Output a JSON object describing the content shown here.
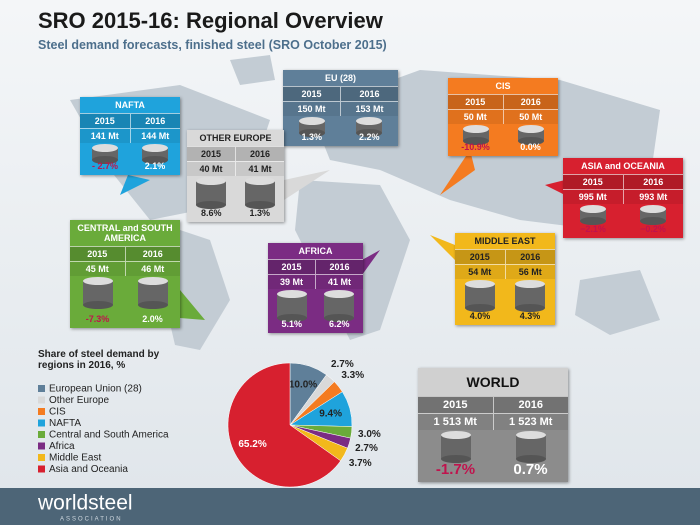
{
  "header": {
    "title": "SRO 2015-16: Regional Overview",
    "subtitle": "Steel demand forecasts, finished steel (SRO October 2015)"
  },
  "regions": [
    {
      "name": "EU (28)",
      "years": [
        "2015",
        "2016"
      ],
      "demand": [
        "150 Mt",
        "153 Mt"
      ],
      "growth": [
        "1.3%",
        "2.2%"
      ],
      "color": "#5f7f99"
    },
    {
      "name": "CIS",
      "years": [
        "2015",
        "2016"
      ],
      "demand": [
        "50 Mt",
        "50 Mt"
      ],
      "growth": [
        "-10.9%",
        "0.0%"
      ],
      "color": "#f47b20"
    },
    {
      "name": "NAFTA",
      "years": [
        "2015",
        "2016"
      ],
      "demand": [
        "141 Mt",
        "144 Mt"
      ],
      "growth": [
        "- 2.7%",
        "2.1%"
      ],
      "color": "#1fa3dc"
    },
    {
      "name": "OTHER EUROPE",
      "years": [
        "2015",
        "2016"
      ],
      "demand": [
        "40 Mt",
        "41 Mt"
      ],
      "growth": [
        "8.6%",
        "1.3%"
      ],
      "color": "#d9d9d9"
    },
    {
      "name": "ASIA and OCEANIA",
      "years": [
        "2015",
        "2016"
      ],
      "demand": [
        "995 Mt",
        "993 Mt"
      ],
      "growth": [
        "−2.1%",
        "−0.2%"
      ],
      "color": "#d7202f"
    },
    {
      "name": "CENTRAL and SOUTH AMERICA",
      "years": [
        "2015",
        "2016"
      ],
      "demand": [
        "45 Mt",
        "46 Mt"
      ],
      "growth": [
        "-7.3%",
        "2.0%"
      ],
      "color": "#6aab3a"
    },
    {
      "name": "AFRICA",
      "years": [
        "2015",
        "2016"
      ],
      "demand": [
        "39 Mt",
        "41 Mt"
      ],
      "growth": [
        "5.1%",
        "6.2%"
      ],
      "color": "#7b2c83"
    },
    {
      "name": "MIDDLE EAST",
      "years": [
        "2015",
        "2016"
      ],
      "demand": [
        "54 Mt",
        "56 Mt"
      ],
      "growth": [
        "4.0%",
        "4.3%"
      ],
      "color": "#f2b81b"
    }
  ],
  "world": {
    "name": "WORLD",
    "years": [
      "2015",
      "2016"
    ],
    "demand": [
      "1 513 Mt",
      "1 523 Mt"
    ],
    "growth": [
      "-1.7%",
      "0.7%"
    ],
    "color": "#8c8c8c"
  },
  "chart_data": {
    "type": "pie",
    "title": "Share of steel demand by regions in 2016, %",
    "categories": [
      "European Union (28)",
      "Other Europe",
      "CIS",
      "NAFTA",
      "Central and South America",
      "Africa",
      "Middle East",
      "Asia and Oceania"
    ],
    "values": [
      10.0,
      2.7,
      3.3,
      9.4,
      3.0,
      2.7,
      3.7,
      65.2
    ],
    "value_labels": [
      "10.0%",
      "2.7%",
      "3.3%",
      "9.4%",
      "3.0%",
      "2.7%",
      "3.7%",
      "65.2%"
    ],
    "colors": [
      "#5f7f99",
      "#d9d9d9",
      "#f47b20",
      "#1fa3dc",
      "#6aab3a",
      "#7b2c83",
      "#f2b81b",
      "#d7202f"
    ]
  },
  "footer": {
    "logo": "worldsteel",
    "tagline": "ASSOCIATION"
  }
}
